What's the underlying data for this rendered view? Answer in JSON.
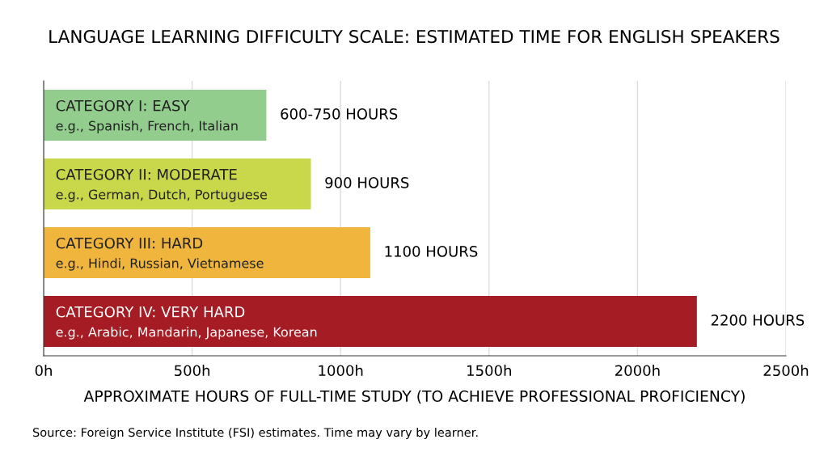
{
  "chart_data": {
    "type": "bar",
    "orientation": "horizontal",
    "title": "LANGUAGE LEARNING DIFFICULTY SCALE: ESTIMATED TIME FOR ENGLISH SPEAKERS",
    "xlabel": "APPROXIMATE HOURS OF FULL-TIME STUDY (TO ACHIEVE PROFESSIONAL PROFICIENCY)",
    "categories": [
      "CATEGORY I: EASY\ne.g., Spanish, French, Italian",
      "CATEGORY II: MODERATE\ne.g., German, Dutch, Portuguese",
      "CATEGORY III: HARD\ne.g., Hindi, Russian, Vietnamese",
      "CATEGORY IV: VERY HARD\ne.g., Arabic, Mandarin, Japanese, Korean"
    ],
    "values": [
      750,
      900,
      1100,
      2200
    ],
    "colors": [
      "#92cd8e",
      "#c9d74b",
      "#efb53d",
      "#a61c24"
    ],
    "value_labels": [
      "600-750 HOURS",
      "900 HOURS",
      "1100 HOURS",
      "2200 HOURS"
    ],
    "xlim": [
      0,
      2500
    ],
    "xticks": [
      {
        "value": 0,
        "label": "0h"
      },
      {
        "value": 500,
        "label": "500h"
      },
      {
        "value": 1000,
        "label": "1000h"
      },
      {
        "value": 1500,
        "label": "1500h"
      },
      {
        "value": 2000,
        "label": "2000h"
      },
      {
        "value": 2500,
        "label": "2500h"
      }
    ],
    "grid": "x",
    "legend": false,
    "annotations": [
      "Source: Foreign Service Institute (FSI) estimates. Time may vary by learner."
    ]
  }
}
